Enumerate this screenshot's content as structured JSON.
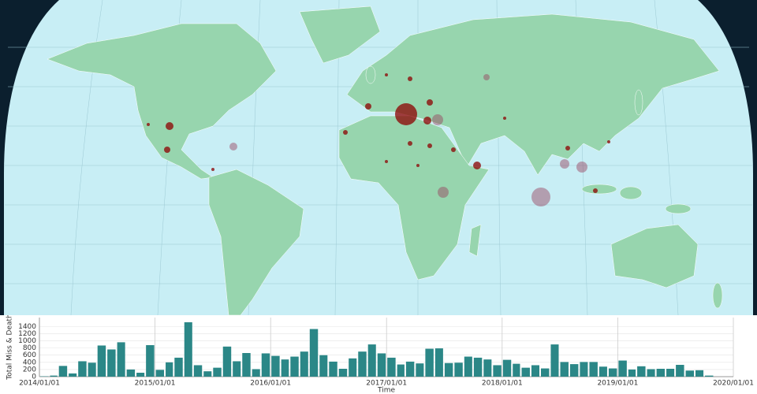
{
  "chart_data": {
    "type": "bar",
    "x_label": "Time",
    "y_label": "Total Miss & Death",
    "x": [
      "2014/01/01",
      "2014/02/01",
      "2014/03/01",
      "2014/04/01",
      "2014/05/01",
      "2014/06/01",
      "2014/07/01",
      "2014/08/01",
      "2014/09/01",
      "2014/10/01",
      "2014/11/01",
      "2014/12/01",
      "2015/01/01",
      "2015/02/01",
      "2015/03/01",
      "2015/04/01",
      "2015/05/01",
      "2015/06/01",
      "2015/07/01",
      "2015/08/01",
      "2015/09/01",
      "2015/10/01",
      "2015/11/01",
      "2015/12/01",
      "2016/01/01",
      "2016/02/01",
      "2016/03/01",
      "2016/04/01",
      "2016/05/01",
      "2016/06/01",
      "2016/07/01",
      "2016/08/01",
      "2016/09/01",
      "2016/10/01",
      "2016/11/01",
      "2016/12/01",
      "2017/01/01",
      "2017/02/01",
      "2017/03/01",
      "2017/04/01",
      "2017/05/01",
      "2017/06/01",
      "2017/07/01",
      "2017/08/01",
      "2017/09/01",
      "2017/10/01",
      "2017/11/01",
      "2017/12/01",
      "2018/01/01",
      "2018/02/01",
      "2018/03/01",
      "2018/04/01",
      "2018/05/01",
      "2018/06/01",
      "2018/07/01",
      "2018/08/01",
      "2018/09/01",
      "2018/10/01",
      "2018/11/01",
      "2018/12/01",
      "2019/01/01",
      "2019/02/01",
      "2019/03/01",
      "2019/04/01",
      "2019/05/01",
      "2019/06/01",
      "2019/07/01",
      "2019/08/01",
      "2019/09/01",
      "2019/10/01",
      "2019/11/01",
      "2019/12/01"
    ],
    "values": [
      10,
      30,
      300,
      90,
      430,
      390,
      870,
      760,
      960,
      200,
      110,
      880,
      190,
      400,
      530,
      1520,
      320,
      150,
      250,
      840,
      430,
      660,
      210,
      650,
      580,
      480,
      560,
      700,
      1330,
      600,
      420,
      220,
      510,
      700,
      900,
      650,
      530,
      340,
      420,
      370,
      780,
      790,
      380,
      390,
      560,
      530,
      480,
      320,
      470,
      360,
      250,
      320,
      230,
      900,
      410,
      350,
      410,
      410,
      280,
      230,
      450,
      200,
      290,
      210,
      220,
      220,
      330,
      170,
      180,
      30,
      0,
      0
    ],
    "color": "#2b8787",
    "xlim": [
      "2014/01/01",
      "2020/01/01"
    ],
    "xticks": [
      "2014/01/01",
      "2015/01/01",
      "2016/01/01",
      "2017/01/01",
      "2018/01/01",
      "2019/01/01",
      "2020/01/01"
    ],
    "ylim": [
      0,
      1650
    ],
    "yticks": [
      0,
      200,
      400,
      600,
      800,
      1000,
      1200,
      1400
    ],
    "grid": true
  }
}
